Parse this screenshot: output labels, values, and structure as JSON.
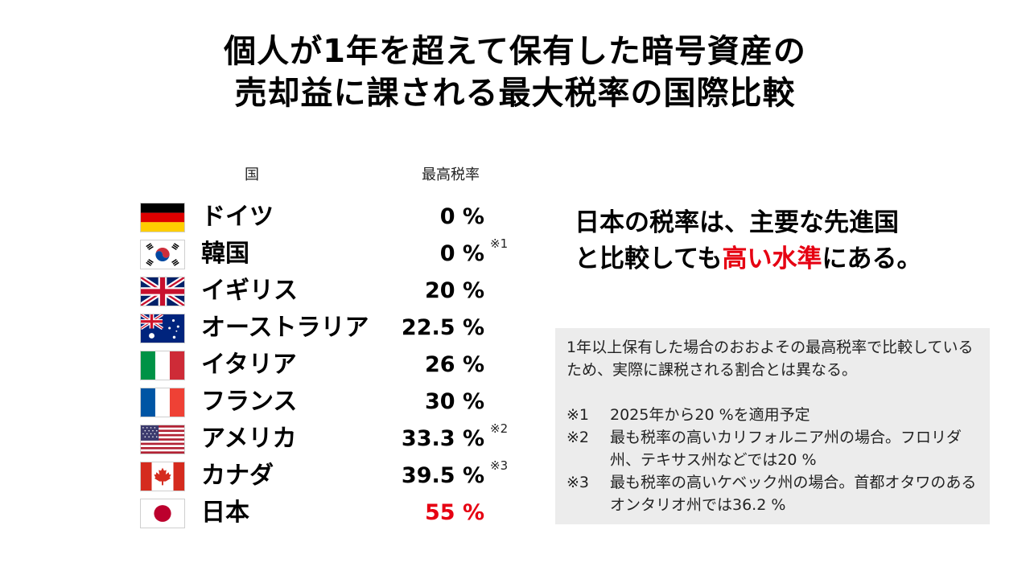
{
  "title": {
    "line1": "個人が1年を超えて保有した暗号資産の",
    "line2": "売却益に課される最大税率の国際比較"
  },
  "table": {
    "col_country": "国",
    "col_rate": "最高税率",
    "rows": [
      {
        "country": "ドイツ",
        "rate": "0 %",
        "mark": "",
        "flag": "germany-flag-icon"
      },
      {
        "country": "韓国",
        "rate": "0 %",
        "mark": "※1",
        "flag": "south-korea-flag-icon"
      },
      {
        "country": "イギリス",
        "rate": "20 %",
        "mark": "",
        "flag": "uk-flag-icon"
      },
      {
        "country": "オーストラリア",
        "rate": "22.5 %",
        "mark": "",
        "flag": "australia-flag-icon"
      },
      {
        "country": "イタリア",
        "rate": "26 %",
        "mark": "",
        "flag": "italy-flag-icon"
      },
      {
        "country": "フランス",
        "rate": "30 %",
        "mark": "",
        "flag": "france-flag-icon"
      },
      {
        "country": "アメリカ",
        "rate": "33.3 %",
        "mark": "※2",
        "flag": "usa-flag-icon"
      },
      {
        "country": "カナダ",
        "rate": "39.5 %",
        "mark": "※3",
        "flag": "canada-flag-icon"
      },
      {
        "country": "日本",
        "rate": "55 %",
        "mark": "",
        "flag": "japan-flag-icon"
      }
    ]
  },
  "headline": {
    "line1": "日本の税率は、主要な先進国",
    "line2_pre": "と比較しても",
    "line2_highlight": "高い水準",
    "line2_post": "にある。"
  },
  "notes": {
    "main": "1年以上保有した場合のおおよその最高税率で比較しているため、実際に課税される割合とは異なる。",
    "items": [
      {
        "key": "※1",
        "text": "2025年から20 %を適用予定"
      },
      {
        "key": "※2",
        "text": "最も税率の高いカリフォルニア州の場合。フロリダ州、テキサス州などでは20 %"
      },
      {
        "key": "※3",
        "text": "最も税率の高いケベック州の場合。首都オタワのあるオンタリオ州では36.2 %"
      }
    ]
  },
  "colors": {
    "highlight": "#e60012",
    "note_bg": "#ececec"
  }
}
